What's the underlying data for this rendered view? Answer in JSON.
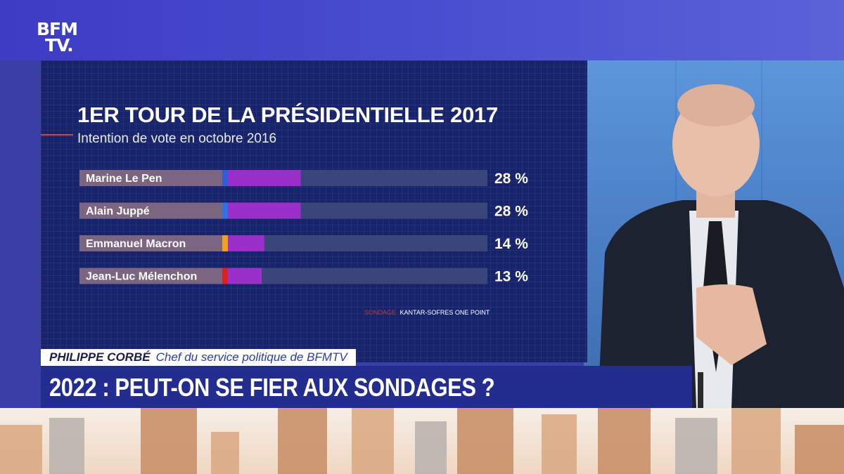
{
  "logo": {
    "line1": "BFM",
    "line2": "TV."
  },
  "chart_data": {
    "type": "bar",
    "title": "1ER TOUR DE LA PRÉSIDENTIELLE 2017",
    "subtitle": "Intention de vote en octobre 2016",
    "categories": [
      "Marine Le Pen",
      "Alain Juppé",
      "Emmanuel Macron",
      "Jean-Luc Mélenchon"
    ],
    "values": [
      28,
      28,
      14,
      13
    ],
    "value_labels": [
      "28 %",
      "28 %",
      "14 %",
      "13 %"
    ],
    "marker_colors": [
      "#2e5fd6",
      "#2e73e6",
      "#f0a020",
      "#e02020"
    ],
    "bar_color": "#9b2fc9",
    "track_color": "#3a4579",
    "ylim": [
      0,
      100
    ],
    "source_label": "SONDAGE",
    "source_text": "KANTAR-SOFRES ONE POINT"
  },
  "lower_third": {
    "name": "PHILIPPE CORBÉ",
    "role": "Chef du service politique de BFMTV"
  },
  "headline": "2022 : PEUT-ON SE FIER AUX SONDAGES ?"
}
